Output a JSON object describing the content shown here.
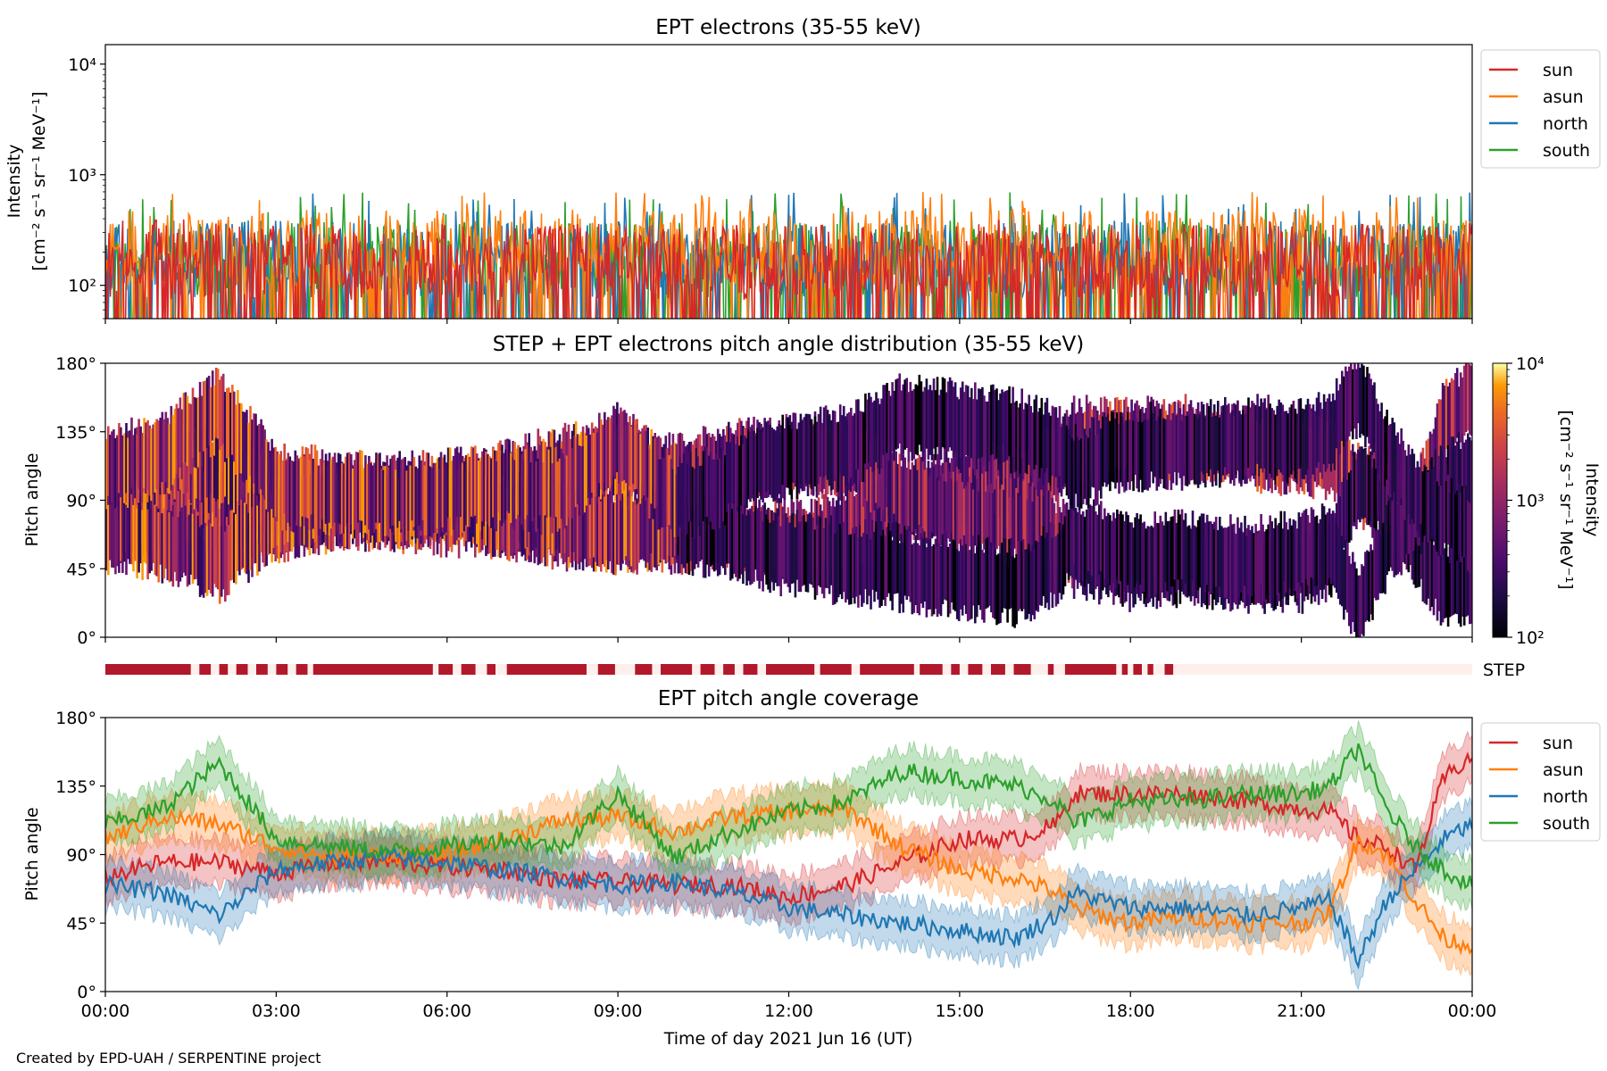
{
  "credit": "Created by EPD-UAH / SERPENTINE project",
  "chart_data": [
    {
      "id": "intensity",
      "type": "line",
      "title": "EPT electrons (35-55 keV)",
      "ylabel_lines": [
        "Intensity",
        "[cm⁻² s⁻¹ sr⁻¹ MeV⁻¹]"
      ],
      "yscale": "log",
      "ylim": [
        50,
        15000
      ],
      "yticks": [
        {
          "v": 100,
          "label": "10²"
        },
        {
          "v": 1000,
          "label": "10³"
        },
        {
          "v": 10000,
          "label": "10⁴"
        }
      ],
      "xlim_hours": [
        0,
        24
      ],
      "legend_position": "outside-right",
      "series": [
        {
          "name": "sun",
          "color": "#d62728",
          "typical": 150,
          "max": 400
        },
        {
          "name": "asun",
          "color": "#ff7f0e",
          "typical": 200,
          "max": 700
        },
        {
          "name": "north",
          "color": "#1f77b4",
          "typical": 160,
          "max": 700
        },
        {
          "name": "south",
          "color": "#2ca02c",
          "typical": 160,
          "max": 700
        }
      ]
    },
    {
      "id": "pad",
      "type": "heatmap",
      "title": "STEP + EPT electrons pitch angle distribution (35-55 keV)",
      "ylabel": "Pitch angle",
      "ylim": [
        0,
        180
      ],
      "yticks": [
        "0°",
        "45°",
        "90°",
        "135°",
        "180°"
      ],
      "yticks_values": [
        0,
        45,
        90,
        135,
        180
      ],
      "colorbar": {
        "label_lines": [
          "Intensity",
          "[cm⁻² s⁻¹ sr⁻¹ MeV⁻¹]"
        ],
        "scale": "log",
        "range": [
          100,
          10000
        ],
        "ticks": [
          {
            "v": 100,
            "label": "10²"
          },
          {
            "v": 1000,
            "label": "10³"
          },
          {
            "v": 10000,
            "label": "10⁴"
          }
        ],
        "colormap": "inferno"
      }
    },
    {
      "id": "step-bar",
      "type": "bar",
      "label": "STEP",
      "colors": {
        "available": "#b2182b",
        "gap": "#fdf0ec"
      },
      "segments_hours": [
        [
          0.0,
          1.5
        ],
        [
          1.65,
          1.85
        ],
        [
          2.0,
          2.15
        ],
        [
          2.3,
          2.5
        ],
        [
          2.65,
          2.85
        ],
        [
          3.0,
          3.2
        ],
        [
          3.35,
          3.55
        ],
        [
          3.65,
          5.75
        ],
        [
          5.85,
          6.1
        ],
        [
          6.25,
          6.5
        ],
        [
          6.7,
          6.85
        ],
        [
          7.05,
          8.45
        ],
        [
          8.65,
          8.95
        ],
        [
          9.3,
          9.6
        ],
        [
          9.75,
          10.3
        ],
        [
          10.45,
          10.7
        ],
        [
          10.85,
          11.05
        ],
        [
          11.2,
          11.45
        ],
        [
          11.6,
          12.45
        ],
        [
          12.55,
          13.1
        ],
        [
          13.25,
          14.2
        ],
        [
          14.3,
          14.7
        ],
        [
          14.85,
          15.0
        ],
        [
          15.15,
          15.4
        ],
        [
          15.55,
          15.8
        ],
        [
          15.95,
          16.25
        ],
        [
          16.55,
          16.65
        ],
        [
          16.85,
          17.75
        ],
        [
          17.85,
          17.95
        ],
        [
          18.05,
          18.2
        ],
        [
          18.3,
          18.4
        ],
        [
          18.6,
          18.75
        ]
      ]
    },
    {
      "id": "coverage",
      "type": "line",
      "title": "EPT pitch angle coverage",
      "ylabel": "Pitch angle",
      "xlabel": "Time of day 2021 Jun 16 (UT)",
      "ylim": [
        0,
        180
      ],
      "yticks": [
        "0°",
        "45°",
        "90°",
        "135°",
        "180°"
      ],
      "yticks_values": [
        0,
        45,
        90,
        135,
        180
      ],
      "xlim_hours": [
        0,
        24
      ],
      "xticks": [
        "00:00",
        "03:00",
        "06:00",
        "09:00",
        "12:00",
        "15:00",
        "18:00",
        "21:00",
        "00:00"
      ],
      "xticks_hours": [
        0,
        3,
        6,
        9,
        12,
        15,
        18,
        21,
        24
      ],
      "legend_position": "outside-right",
      "band_halfwidth_deg": 15,
      "series": [
        {
          "name": "sun",
          "color": "#d62728",
          "x": [
            0,
            1,
            2,
            3,
            4,
            5,
            6,
            7,
            8,
            9,
            10,
            11,
            12,
            13,
            14,
            15,
            16,
            16.7,
            17,
            18,
            19,
            20,
            21,
            21.5,
            22,
            22.5,
            23,
            23.5,
            24
          ],
          "y": [
            75,
            85,
            85,
            78,
            85,
            85,
            82,
            80,
            73,
            72,
            70,
            70,
            62,
            70,
            85,
            100,
            100,
            110,
            130,
            130,
            130,
            125,
            120,
            118,
            100,
            95,
            80,
            140,
            155
          ]
        },
        {
          "name": "asun",
          "color": "#ff7f0e",
          "x": [
            0,
            1,
            2,
            3,
            4,
            5,
            6,
            7,
            8,
            9,
            10,
            11,
            12,
            13,
            14,
            15,
            16,
            16.7,
            17,
            18,
            19,
            20,
            21,
            21.5,
            22,
            22.5,
            23,
            23.5,
            24
          ],
          "y": [
            100,
            115,
            110,
            95,
            88,
            90,
            90,
            100,
            112,
            115,
            105,
            115,
            118,
            120,
            95,
            80,
            75,
            65,
            55,
            45,
            50,
            45,
            45,
            52,
            100,
            90,
            60,
            35,
            30
          ]
        },
        {
          "name": "north",
          "color": "#1f77b4",
          "x": [
            0,
            1,
            2,
            3,
            4,
            5,
            6,
            7,
            8,
            9,
            10,
            11,
            12,
            13,
            14,
            15,
            16,
            16.7,
            17,
            18,
            19,
            20,
            21,
            21.5,
            22,
            22.5,
            23,
            23.5,
            24
          ],
          "y": [
            70,
            65,
            50,
            80,
            85,
            88,
            85,
            80,
            75,
            70,
            72,
            65,
            55,
            50,
            45,
            40,
            35,
            50,
            65,
            55,
            55,
            50,
            55,
            60,
            20,
            60,
            80,
            100,
            110
          ]
        },
        {
          "name": "south",
          "color": "#2ca02c",
          "x": [
            0,
            1,
            2,
            3,
            4,
            5,
            6,
            7,
            8,
            9,
            10,
            11,
            12,
            13,
            14,
            15,
            16,
            16.7,
            17,
            18,
            19,
            20,
            21,
            21.5,
            22,
            22.5,
            23,
            23.5,
            24
          ],
          "y": [
            110,
            120,
            150,
            100,
            95,
            92,
            95,
            100,
            95,
            130,
            88,
            105,
            118,
            125,
            145,
            140,
            135,
            125,
            110,
            125,
            125,
            130,
            130,
            135,
            160,
            120,
            95,
            80,
            70
          ]
        }
      ]
    }
  ]
}
